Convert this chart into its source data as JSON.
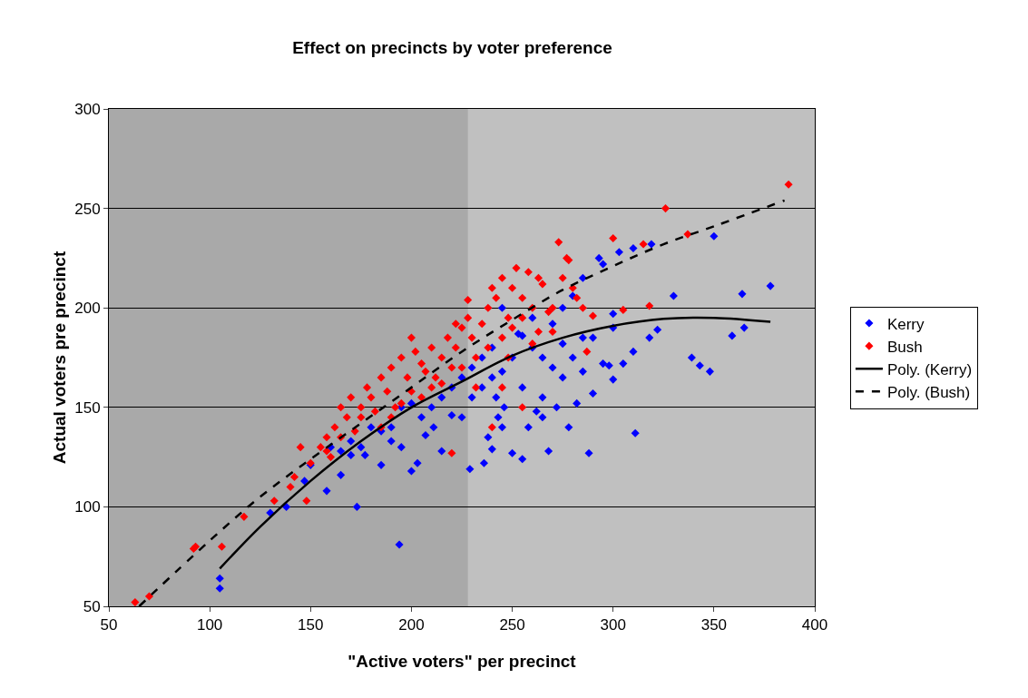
{
  "chart_data": {
    "type": "scatter",
    "title": "Effect on precincts by voter preference",
    "xlabel": "\"Active voters\" per precinct",
    "ylabel": "Actual voters pre precinct",
    "xlim": [
      50,
      400
    ],
    "xticks": [
      50,
      100,
      150,
      200,
      250,
      300,
      350,
      400
    ],
    "ylim": [
      50,
      300
    ],
    "yticks": [
      50,
      100,
      150,
      200,
      250,
      300
    ],
    "grid": "y",
    "legend": "right",
    "marker": "diamond",
    "bands": [
      {
        "axis": "x",
        "from": 50,
        "to": 228,
        "color": "#a9a9a9"
      }
    ],
    "series": [
      {
        "name": "Kerry",
        "color": "#0000ff",
        "x": [
          105,
          105,
          194,
          173,
          130,
          138,
          147,
          158,
          165,
          170,
          177,
          185,
          190,
          195,
          200,
          203,
          207,
          211,
          215,
          220,
          225,
          229,
          236,
          238,
          240,
          243,
          246,
          250,
          255,
          258,
          262,
          265,
          268,
          272,
          278,
          282,
          288,
          290,
          295,
          298,
          300,
          305,
          311,
          310,
          318,
          322,
          330,
          339,
          343,
          348,
          350,
          359,
          364,
          365,
          378,
          310,
          293,
          303,
          319,
          295,
          285,
          280,
          275,
          270,
          260,
          255,
          250,
          245,
          240,
          235,
          230,
          225,
          220,
          215,
          210,
          205,
          200,
          195,
          190,
          185,
          180,
          175,
          170,
          165,
          160,
          150,
          270,
          275,
          285,
          260,
          253,
          245,
          265,
          290,
          300,
          280,
          240,
          235,
          255,
          275,
          285,
          300,
          265,
          245,
          242,
          230
        ],
        "values": [
          64,
          59,
          81,
          100,
          97,
          100,
          113,
          108,
          116,
          126,
          126,
          121,
          133,
          130,
          118,
          122,
          136,
          140,
          128,
          146,
          145,
          119,
          122,
          135,
          129,
          145,
          150,
          127,
          124,
          140,
          148,
          155,
          128,
          150,
          140,
          152,
          127,
          157,
          172,
          171,
          164,
          172,
          137,
          178,
          185,
          189,
          206,
          175,
          171,
          168,
          236,
          186,
          207,
          190,
          211,
          230,
          225,
          228,
          232,
          222,
          215,
          206,
          200,
          192,
          180,
          186,
          175,
          168,
          165,
          160,
          170,
          165,
          160,
          155,
          150,
          145,
          152,
          150,
          140,
          138,
          140,
          130,
          133,
          128,
          130,
          121,
          170,
          182,
          185,
          195,
          187,
          200,
          175,
          185,
          190,
          175,
          180,
          175,
          160,
          165,
          168,
          197,
          145,
          140,
          155,
          155
        ]
      },
      {
        "name": "Bush",
        "color": "#ff0000",
        "x": [
          63,
          70,
          92,
          93,
          106,
          117,
          132,
          140,
          142,
          148,
          145,
          150,
          155,
          158,
          160,
          162,
          165,
          168,
          170,
          172,
          175,
          178,
          180,
          182,
          185,
          188,
          190,
          192,
          195,
          198,
          200,
          202,
          205,
          207,
          210,
          212,
          215,
          218,
          220,
          222,
          225,
          228,
          228,
          232,
          235,
          238,
          240,
          242,
          245,
          248,
          250,
          252,
          255,
          258,
          260,
          263,
          265,
          268,
          270,
          273,
          277,
          278,
          280,
          282,
          290,
          300,
          305,
          315,
          318,
          326,
          337,
          387,
          285,
          275,
          263,
          255,
          245,
          238,
          230,
          225,
          215,
          210,
          205,
          200,
          195,
          190,
          185,
          175,
          165,
          158,
          245,
          255,
          240,
          287,
          220,
          250,
          260,
          248,
          232,
          270,
          222
        ],
        "values": [
          52,
          55,
          79,
          80,
          80,
          95,
          103,
          110,
          115,
          103,
          130,
          122,
          130,
          135,
          125,
          140,
          150,
          145,
          155,
          138,
          150,
          160,
          155,
          148,
          165,
          158,
          170,
          150,
          175,
          165,
          185,
          178,
          172,
          168,
          180,
          165,
          175,
          185,
          170,
          180,
          190,
          195,
          204,
          175,
          192,
          200,
          210,
          205,
          215,
          195,
          210,
          220,
          205,
          218,
          200,
          215,
          212,
          198,
          200,
          233,
          225,
          224,
          210,
          205,
          196,
          235,
          199,
          232,
          201,
          250,
          237,
          262,
          200,
          215,
          188,
          195,
          185,
          180,
          185,
          170,
          162,
          160,
          155,
          158,
          152,
          145,
          140,
          145,
          135,
          128,
          160,
          150,
          140,
          178,
          127,
          190,
          182,
          175,
          160,
          188,
          192
        ]
      },
      {
        "name": "Poly. (Kerry)",
        "type": "line",
        "marker": "none",
        "color": "#000000",
        "line_style": "solid",
        "x": [
          105,
          125,
          150,
          175,
          200,
          225,
          250,
          275,
          300,
          325,
          350,
          378
        ],
        "values": [
          69,
          90,
          113,
          133,
          150,
          163,
          176,
          185,
          191,
          194.5,
          195,
          193
        ]
      },
      {
        "name": "Poly. (Bush)",
        "type": "line",
        "marker": "none",
        "color": "#000000",
        "line_style": "dashed",
        "x": [
          65,
          100,
          125,
          150,
          175,
          200,
          225,
          250,
          275,
          300,
          325,
          350,
          385
        ],
        "values": [
          50,
          83,
          105,
          124,
          142,
          160,
          178,
          194,
          209,
          221,
          232,
          241,
          254
        ]
      }
    ]
  }
}
